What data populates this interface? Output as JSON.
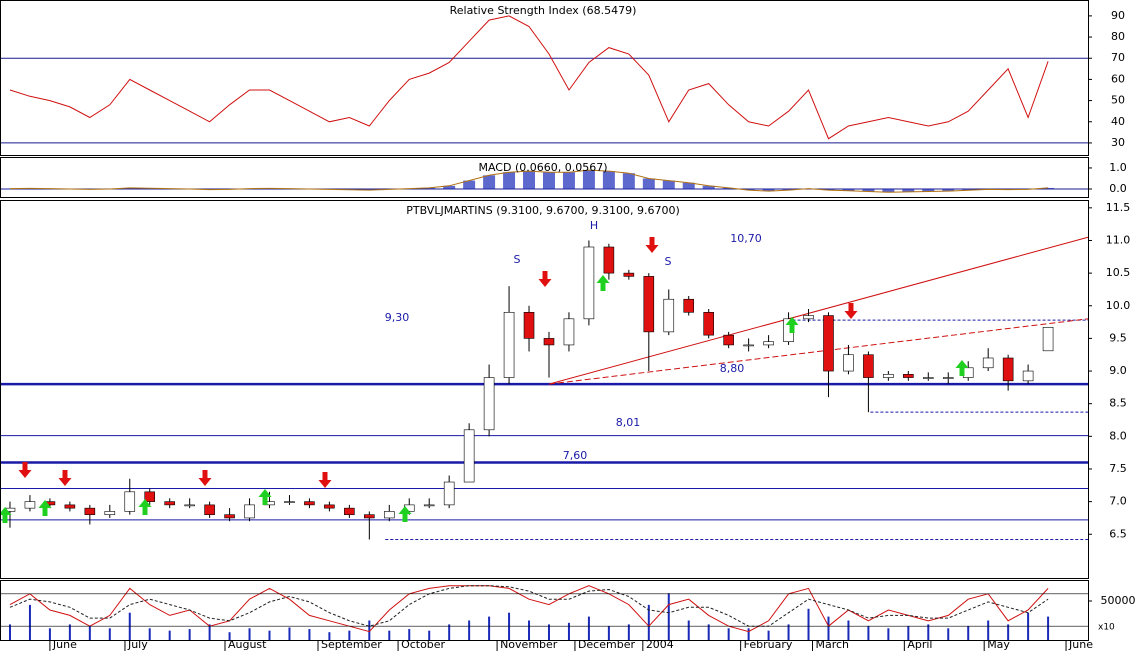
{
  "chart_data": [
    {
      "type": "line",
      "title": "Relative Strength Index (68.5479)",
      "color": "#d01010",
      "values": [
        55,
        52,
        50,
        47,
        42,
        48,
        60,
        55,
        50,
        45,
        40,
        48,
        55,
        55,
        50,
        45,
        40,
        42,
        38,
        50,
        60,
        63,
        68,
        78,
        88,
        90,
        85,
        72,
        55,
        68,
        75,
        72,
        62,
        40,
        55,
        58,
        48,
        40,
        38,
        45,
        55,
        32,
        38,
        40,
        42,
        40,
        38,
        40,
        45,
        55,
        65,
        42,
        68.5479
      ],
      "ylim": [
        24.3,
        97.5
      ],
      "yticks": [
        30,
        40,
        50,
        60,
        70,
        80,
        90
      ],
      "hlines": [
        70,
        30
      ]
    },
    {
      "type": "histogram-line",
      "title": "MACD (0.0660, 0.0567)",
      "color": "#1a2ab8",
      "values": [
        0.02,
        0.03,
        0.02,
        0.0,
        -0.02,
        0.0,
        0.05,
        0.04,
        0.02,
        0.0,
        -0.03,
        -0.02,
        0.02,
        0.03,
        0.02,
        0.0,
        -0.02,
        -0.04,
        -0.05,
        -0.02,
        0.02,
        0.05,
        0.15,
        0.4,
        0.65,
        0.8,
        0.85,
        0.8,
        0.8,
        0.9,
        0.85,
        0.75,
        0.5,
        0.4,
        0.3,
        0.15,
        0.05,
        -0.05,
        -0.1,
        -0.05,
        0.02,
        -0.05,
        -0.08,
        -0.12,
        -0.15,
        -0.14,
        -0.12,
        -0.1,
        -0.06,
        -0.02,
        -0.03,
        -0.02,
        0.05
      ],
      "ylim": [
        -0.38,
        1.52
      ],
      "yticks": [
        {
          "value": 0,
          "label": "0.0"
        },
        {
          "value": 1,
          "label": "1.0"
        }
      ]
    },
    {
      "type": "candlestick",
      "title": "PTBVLJMARTINS (9.3100, 9.6700, 9.3100, 9.6700)",
      "open": [
        6.85,
        6.9,
        7.0,
        6.95,
        6.9,
        6.8,
        6.85,
        7.15,
        7.0,
        6.95,
        6.95,
        6.8,
        6.75,
        6.95,
        7.0,
        7.0,
        6.95,
        6.9,
        6.8,
        6.75,
        6.85,
        6.95,
        6.95,
        7.3,
        8.1,
        8.9,
        9.9,
        9.5,
        9.4,
        9.8,
        10.9,
        10.5,
        10.45,
        9.6,
        10.1,
        9.9,
        9.55,
        9.4,
        9.4,
        9.45,
        9.8,
        9.85,
        9.0,
        9.25,
        8.9,
        8.95,
        8.9,
        8.9,
        8.9,
        9.05,
        9.2,
        8.85,
        9.31
      ],
      "high": [
        7.0,
        7.1,
        7.05,
        7.0,
        6.95,
        6.95,
        7.35,
        7.2,
        7.05,
        7.05,
        7.0,
        6.9,
        7.05,
        7.15,
        7.1,
        7.05,
        7.0,
        6.95,
        6.85,
        6.95,
        7.05,
        7.05,
        7.4,
        8.2,
        9.1,
        10.3,
        10.0,
        9.6,
        9.9,
        11.0,
        10.95,
        10.55,
        10.5,
        10.25,
        10.15,
        9.95,
        9.6,
        9.5,
        9.55,
        9.9,
        9.95,
        9.9,
        9.4,
        9.3,
        9.0,
        9.0,
        8.98,
        8.98,
        9.15,
        9.35,
        9.25,
        9.1,
        9.67
      ],
      "low": [
        6.6,
        6.85,
        6.9,
        6.85,
        6.65,
        6.75,
        6.8,
        6.95,
        6.9,
        6.9,
        6.75,
        6.7,
        6.7,
        6.9,
        6.95,
        6.9,
        6.85,
        6.75,
        6.42,
        6.7,
        6.8,
        6.9,
        6.9,
        7.3,
        8.0,
        8.8,
        9.3,
        8.9,
        9.3,
        9.7,
        10.4,
        10.4,
        9.0,
        9.55,
        9.85,
        9.5,
        9.35,
        9.3,
        9.35,
        9.4,
        9.75,
        8.6,
        8.95,
        8.37,
        8.85,
        8.85,
        8.85,
        8.8,
        8.85,
        9.0,
        8.7,
        8.8,
        9.31
      ],
      "close": [
        6.9,
        7.0,
        6.95,
        6.9,
        6.8,
        6.85,
        7.15,
        7.0,
        6.95,
        6.95,
        6.8,
        6.75,
        6.95,
        7.0,
        7.0,
        6.95,
        6.9,
        6.8,
        6.75,
        6.85,
        6.95,
        6.95,
        7.3,
        8.1,
        8.9,
        9.9,
        9.5,
        9.4,
        9.8,
        10.9,
        10.5,
        10.45,
        9.6,
        10.1,
        9.9,
        9.55,
        9.4,
        9.4,
        9.45,
        9.8,
        9.85,
        9.0,
        9.25,
        8.9,
        8.95,
        8.9,
        8.9,
        8.9,
        9.05,
        9.2,
        8.85,
        9.0,
        9.67
      ],
      "up_color": "#ffffff",
      "down_color": "#e01010",
      "xlim": [
        -0.5,
        54
      ],
      "xticks": [
        {
          "value": 2.0,
          "label": "June"
        },
        {
          "value": 5.76,
          "label": "July"
        },
        {
          "value": 10.77,
          "label": "August"
        },
        {
          "value": 15.43,
          "label": "September"
        },
        {
          "value": 19.44,
          "label": "October"
        },
        {
          "value": 24.4,
          "label": "November"
        },
        {
          "value": 28.3,
          "label": "December"
        },
        {
          "value": 31.7,
          "label": "2004"
        },
        {
          "value": 36.6,
          "label": "February"
        },
        {
          "value": 40.2,
          "label": "March"
        },
        {
          "value": 44.8,
          "label": "April"
        },
        {
          "value": 48.8,
          "label": "May"
        },
        {
          "value": 52.9,
          "label": "June"
        }
      ],
      "ylim": [
        5.83,
        11.62
      ],
      "yticks": [
        6.5,
        {
          "value": 7,
          "label": "7.0"
        },
        7.5,
        {
          "value": 8,
          "label": "8.0"
        },
        8.5,
        {
          "value": 9,
          "label": "9.0"
        },
        9.5,
        {
          "value": 10,
          "label": "10.0"
        },
        10.5,
        {
          "value": 11,
          "label": "11.0"
        },
        11.5
      ],
      "hlines": [
        {
          "value": 8.8,
          "thick": true
        },
        {
          "value": 8.01
        },
        {
          "value": 7.6,
          "thick": true
        },
        {
          "value": 7.2
        },
        {
          "value": 6.72
        },
        {
          "value": 6.42,
          "dashed": true,
          "from": 18.8
        },
        {
          "value": 9.78,
          "dashed": true,
          "from": 39.2
        },
        {
          "value": 8.37,
          "dashed": true,
          "from": 43.1
        }
      ],
      "trendlines": [
        {
          "x": [
            27,
            54
          ],
          "y": [
            8.8,
            11.05
          ]
        },
        {
          "x": [
            27,
            54
          ],
          "y": [
            8.8,
            9.8
          ],
          "dashed": true
        }
      ],
      "annotations": [
        "9,30",
        "10,70",
        "8,80",
        "8,01",
        "7,60",
        "S",
        "H",
        "S"
      ]
    },
    {
      "type": "volume",
      "color": "#1a2ab8",
      "unit": "x10",
      "values": [
        20000,
        45000,
        15000,
        20000,
        18000,
        15000,
        35000,
        15000,
        12000,
        14000,
        20000,
        10000,
        15000,
        12000,
        16000,
        14000,
        10000,
        12000,
        25000,
        12000,
        14000,
        12000,
        20000,
        25000,
        30000,
        35000,
        25000,
        20000,
        22000,
        30000,
        18000,
        20000,
        45000,
        60000,
        25000,
        20000,
        15000,
        15000,
        12000,
        20000,
        40000,
        30000,
        25000,
        18000,
        15000,
        18000,
        20000,
        15000,
        18000,
        25000,
        20000,
        35000,
        30000
      ],
      "ylim": [
        0,
        76900
      ],
      "yticks": [
        50000
      ],
      "series": [
        {
          "color": "#d01010",
          "axis": "y2",
          "values": [
            60,
            80,
            50,
            40,
            20,
            40,
            90,
            60,
            40,
            50,
            20,
            30,
            70,
            90,
            70,
            40,
            30,
            20,
            10,
            50,
            80,
            90,
            95,
            95,
            95,
            90,
            70,
            60,
            80,
            95,
            80,
            60,
            20,
            60,
            70,
            40,
            20,
            10,
            30,
            80,
            90,
            20,
            50,
            30,
            50,
            40,
            30,
            40,
            70,
            80,
            30,
            50,
            90
          ]
        },
        {
          "color": "#202020",
          "axis": "y2",
          "dashed": true,
          "values": [
            55,
            70,
            65,
            55,
            35,
            35,
            60,
            70,
            60,
            50,
            35,
            30,
            45,
            65,
            75,
            65,
            45,
            30,
            20,
            30,
            60,
            80,
            90,
            95,
            95,
            93,
            85,
            70,
            70,
            85,
            88,
            75,
            50,
            45,
            55,
            55,
            40,
            20,
            20,
            45,
            70,
            60,
            50,
            35,
            40,
            40,
            35,
            35,
            50,
            65,
            55,
            45,
            70
          ]
        }
      ],
      "y2lim": [
        0,
        100
      ]
    }
  ]
}
